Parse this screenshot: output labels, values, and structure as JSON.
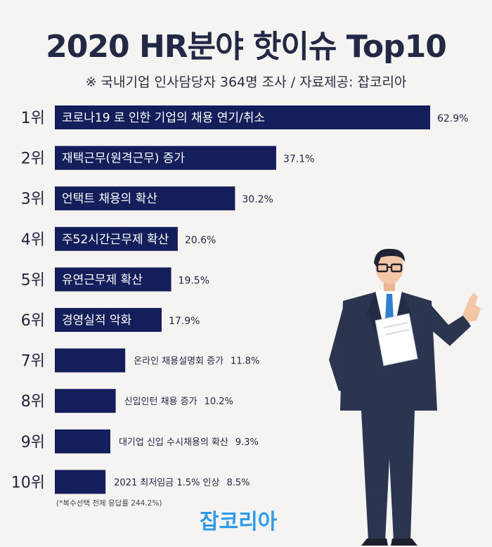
{
  "header": {
    "title": "2020 HR분야 핫이슈 Top10",
    "subtitle": "※ 국내기업 인사담당자 364명 조사 / 자료제공: 잡코리아"
  },
  "chart_data": {
    "type": "bar",
    "orientation": "horizontal",
    "title": "2020 HR분야 핫이슈 Top10",
    "subtitle": "※ 국내기업 인사담당자 364명 조사 / 자료제공: 잡코리아",
    "categories": [
      "코로나19 로 인한 기업의 채용 연기/취소",
      "재택근무(원격근무) 증가",
      "언택트 채용의 확산",
      "주52시간근무제 확산",
      "유연근무제 확산",
      "경영실적 악화",
      "온라인 채용설명회 증가",
      "신입인턴 채용 증가",
      "대기업 신입 수시채용의 확산",
      "2021 최저임금 1.5% 인상"
    ],
    "ranks": [
      "1위",
      "2위",
      "3위",
      "4위",
      "5위",
      "6위",
      "7위",
      "8위",
      "9위",
      "10위"
    ],
    "values": [
      62.9,
      37.1,
      30.2,
      20.6,
      19.5,
      17.9,
      11.8,
      10.2,
      9.3,
      8.5
    ],
    "value_labels": [
      "62.9%",
      "37.1%",
      "30.2%",
      "20.6%",
      "19.5%",
      "17.9%",
      "11.8%",
      "10.2%",
      "9.3%",
      "8.5%"
    ],
    "xlim": [
      0,
      62.9
    ],
    "bar_color": "#141e5a",
    "grid": false
  },
  "footnote": "(*복수선택 전체 응답률 244.2%)",
  "brand": "잡코리아",
  "colors": {
    "background": "#f6f4f3",
    "bar": "#141e5a",
    "brand": "#2f9be8",
    "suit": "#2b3550",
    "skin": "#f3c6a6",
    "hair": "#1f2333"
  }
}
